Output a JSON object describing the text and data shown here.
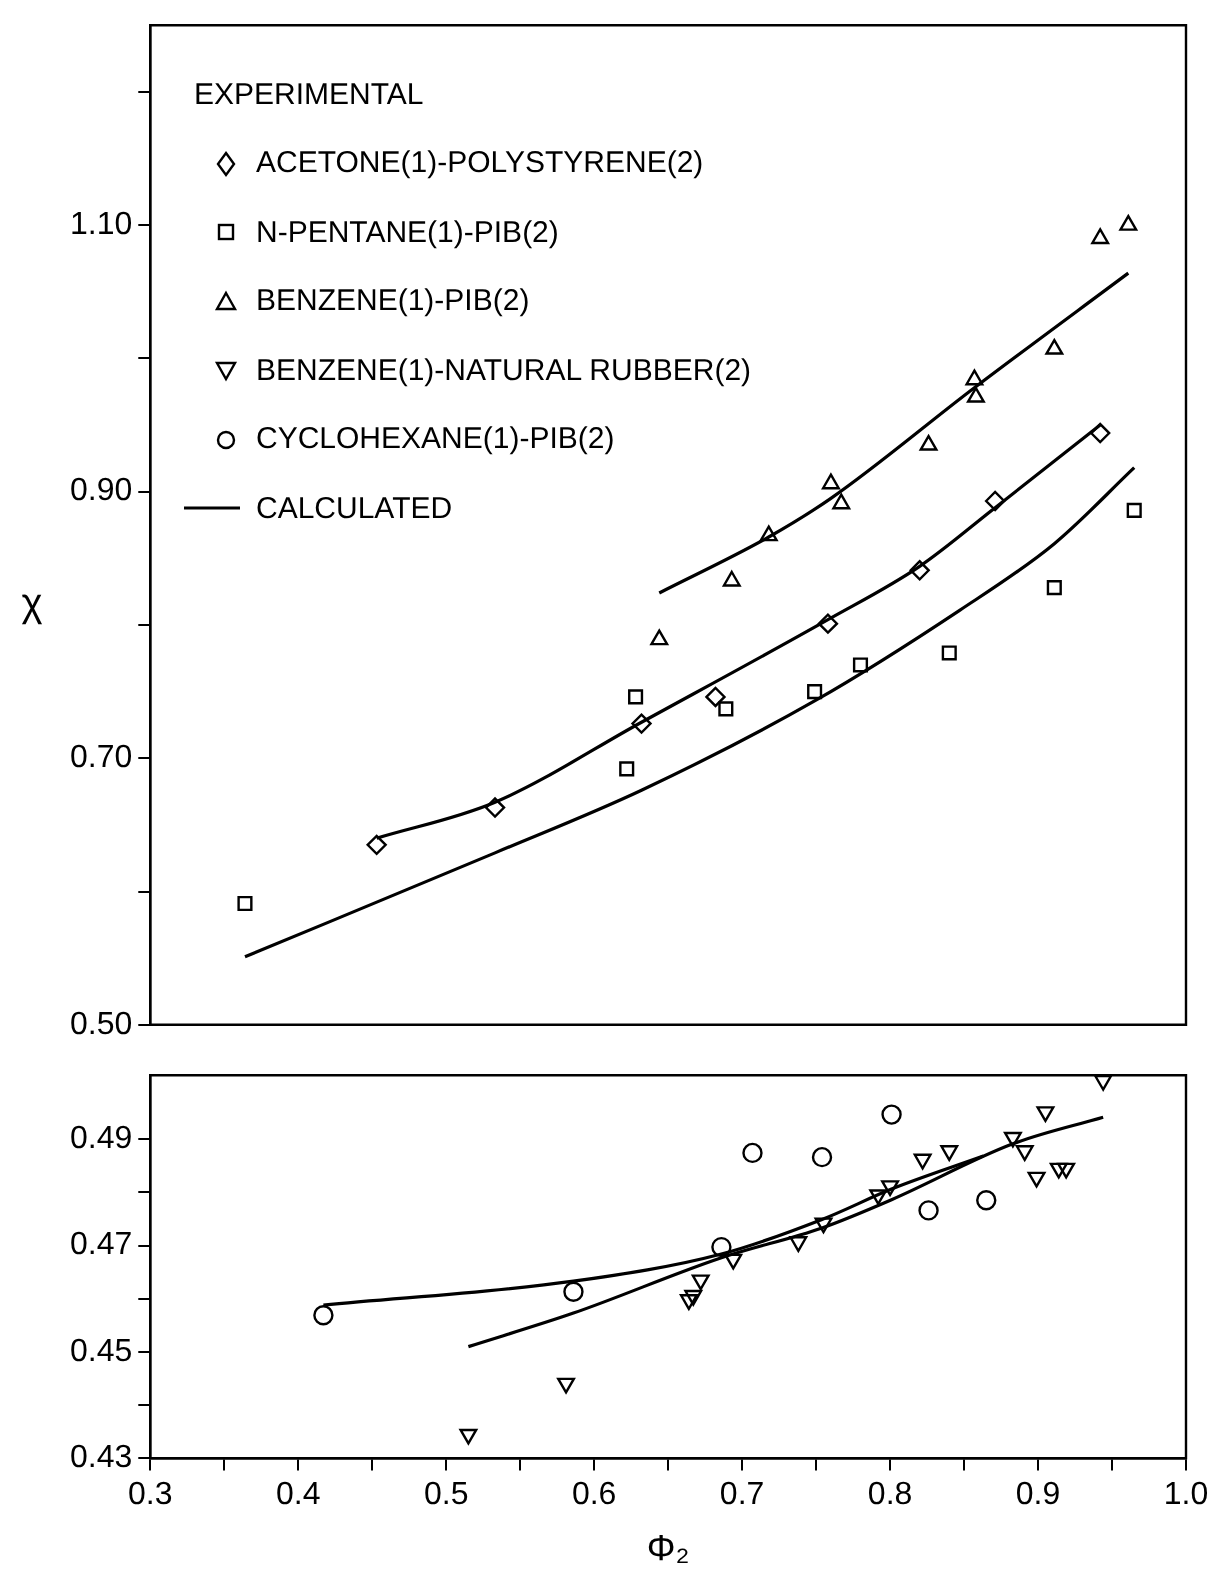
{
  "chart_data": [
    {
      "type": "scatter",
      "ylabel": "χ",
      "legend_title": "EXPERIMENTAL",
      "legend": "top left",
      "grid": false,
      "tick_labels": "y",
      "xlim": [
        0.3,
        1.0
      ],
      "ylim": [
        0.5,
        1.25
      ],
      "yticks": [
        {
          "value": 0.5,
          "label": "0.50"
        },
        {
          "value": 0.6,
          "label": null
        },
        {
          "value": 0.7,
          "label": "0.70"
        },
        {
          "value": 0.8,
          "label": null
        },
        {
          "value": 0.9,
          "label": "0.90"
        },
        {
          "value": 1.0,
          "label": null
        },
        {
          "value": 1.1,
          "label": "1.10"
        },
        {
          "value": 1.2,
          "label": null
        }
      ],
      "series": [
        {
          "name": "ACETONE(1)-POLYSTYRENE(2)",
          "color": "#000000",
          "marker": "diamond",
          "x": [
            0.453,
            0.533,
            0.632,
            0.682,
            0.758,
            0.82,
            0.871,
            0.942
          ],
          "values": [
            0.635,
            0.663,
            0.726,
            0.746,
            0.801,
            0.841,
            0.893,
            0.944
          ]
        },
        {
          "name": "N-PENTANE(1)-PIB(2)",
          "color": "#000000",
          "marker": "square",
          "x": [
            0.364,
            0.622,
            0.628,
            0.689,
            0.749,
            0.78,
            0.84,
            0.911,
            0.965
          ],
          "values": [
            0.591,
            0.692,
            0.746,
            0.737,
            0.75,
            0.77,
            0.779,
            0.828,
            0.886
          ]
        },
        {
          "name": "BENZENE(1)-PIB(2)",
          "color": "#000000",
          "marker": "triangle",
          "x": [
            0.644,
            0.693,
            0.718,
            0.76,
            0.767,
            0.826,
            0.857,
            0.858,
            0.911,
            0.942,
            0.961
          ],
          "values": [
            0.789,
            0.833,
            0.867,
            0.906,
            0.891,
            0.935,
            0.984,
            0.971,
            1.007,
            1.09,
            1.1
          ]
        },
        {
          "name": "CALCULATED",
          "type": "line",
          "color": "#000000",
          "marker": "none",
          "x": [
            0.453,
            0.533,
            0.632,
            0.758,
            0.82,
            0.871,
            0.942
          ],
          "values": [
            0.64,
            0.667,
            0.727,
            0.804,
            0.844,
            0.888,
            0.95
          ]
        },
        {
          "type": "line",
          "color": "#000000",
          "marker": "none",
          "x": [
            0.364,
            0.533,
            0.632,
            0.749,
            0.847,
            0.911,
            0.965
          ],
          "values": [
            0.551,
            0.629,
            0.676,
            0.743,
            0.811,
            0.861,
            0.918
          ]
        },
        {
          "type": "line",
          "color": "#000000",
          "marker": "none",
          "x": [
            0.644,
            0.718,
            0.76,
            0.857,
            0.961
          ],
          "values": [
            0.824,
            0.866,
            0.895,
            0.978,
            1.064
          ]
        }
      ]
    },
    {
      "type": "scatter",
      "xlabel": "Φ₂",
      "grid": false,
      "legend": "top left",
      "xlim": [
        0.3,
        1.0
      ],
      "xticks": [
        0.3,
        0.4,
        0.5,
        0.6,
        0.7,
        0.8,
        0.9,
        {
          "value": 1.0,
          "label": "1.0"
        },
        {
          "value": 0.35,
          "label": null
        },
        {
          "value": 0.45,
          "label": null
        },
        {
          "value": 0.55,
          "label": null
        },
        {
          "value": 0.65,
          "label": null
        },
        {
          "value": 0.75,
          "label": null
        },
        {
          "value": 0.85,
          "label": null
        },
        {
          "value": 0.95,
          "label": null
        }
      ],
      "ylim": [
        0.43,
        0.502
      ],
      "yticks": [
        0.43,
        {
          "value": 0.44,
          "label": null
        },
        0.45,
        {
          "value": 0.46,
          "label": null
        },
        0.47,
        {
          "value": 0.48,
          "label": null
        },
        0.49
      ],
      "series": [
        {
          "name": "BENZENE(1)-NATURAL RUBBER(2)",
          "color": "#000000",
          "marker": "triangle_down",
          "x": [
            0.515,
            0.581,
            0.664,
            0.667,
            0.672,
            0.694,
            0.738,
            0.755,
            0.792,
            0.8,
            0.822,
            0.84,
            0.883,
            0.891,
            0.899,
            0.905,
            0.914,
            0.919,
            0.944
          ],
          "values": [
            0.4345,
            0.4441,
            0.4598,
            0.4606,
            0.4635,
            0.4674,
            0.4707,
            0.4742,
            0.4795,
            0.4812,
            0.4862,
            0.4878,
            0.4903,
            0.4878,
            0.4828,
            0.4951,
            0.4845,
            0.4845,
            0.501
          ]
        },
        {
          "name": "CYCLOHEXANE(1)-PIB(2)",
          "color": "#000000",
          "marker": "circle",
          "x": [
            0.417,
            0.586,
            0.686,
            0.707,
            0.754,
            0.801,
            0.826,
            0.865
          ],
          "values": [
            0.4569,
            0.4613,
            0.4697,
            0.4874,
            0.4866,
            0.4946,
            0.4766,
            0.4785
          ]
        },
        {
          "type": "line",
          "color": "#000000",
          "marker": "none",
          "x": [
            0.417,
            0.586,
            0.686,
            0.754,
            0.801,
            0.863
          ],
          "values": [
            0.4588,
            0.4633,
            0.4684,
            0.4749,
            0.4806,
            0.4868
          ]
        },
        {
          "type": "line",
          "color": "#000000",
          "marker": "none",
          "x": [
            0.515,
            0.586,
            0.686,
            0.754,
            0.801,
            0.883,
            0.944
          ],
          "values": [
            0.451,
            0.4573,
            0.4677,
            0.4733,
            0.4786,
            0.4891,
            0.4941
          ]
        }
      ]
    }
  ]
}
